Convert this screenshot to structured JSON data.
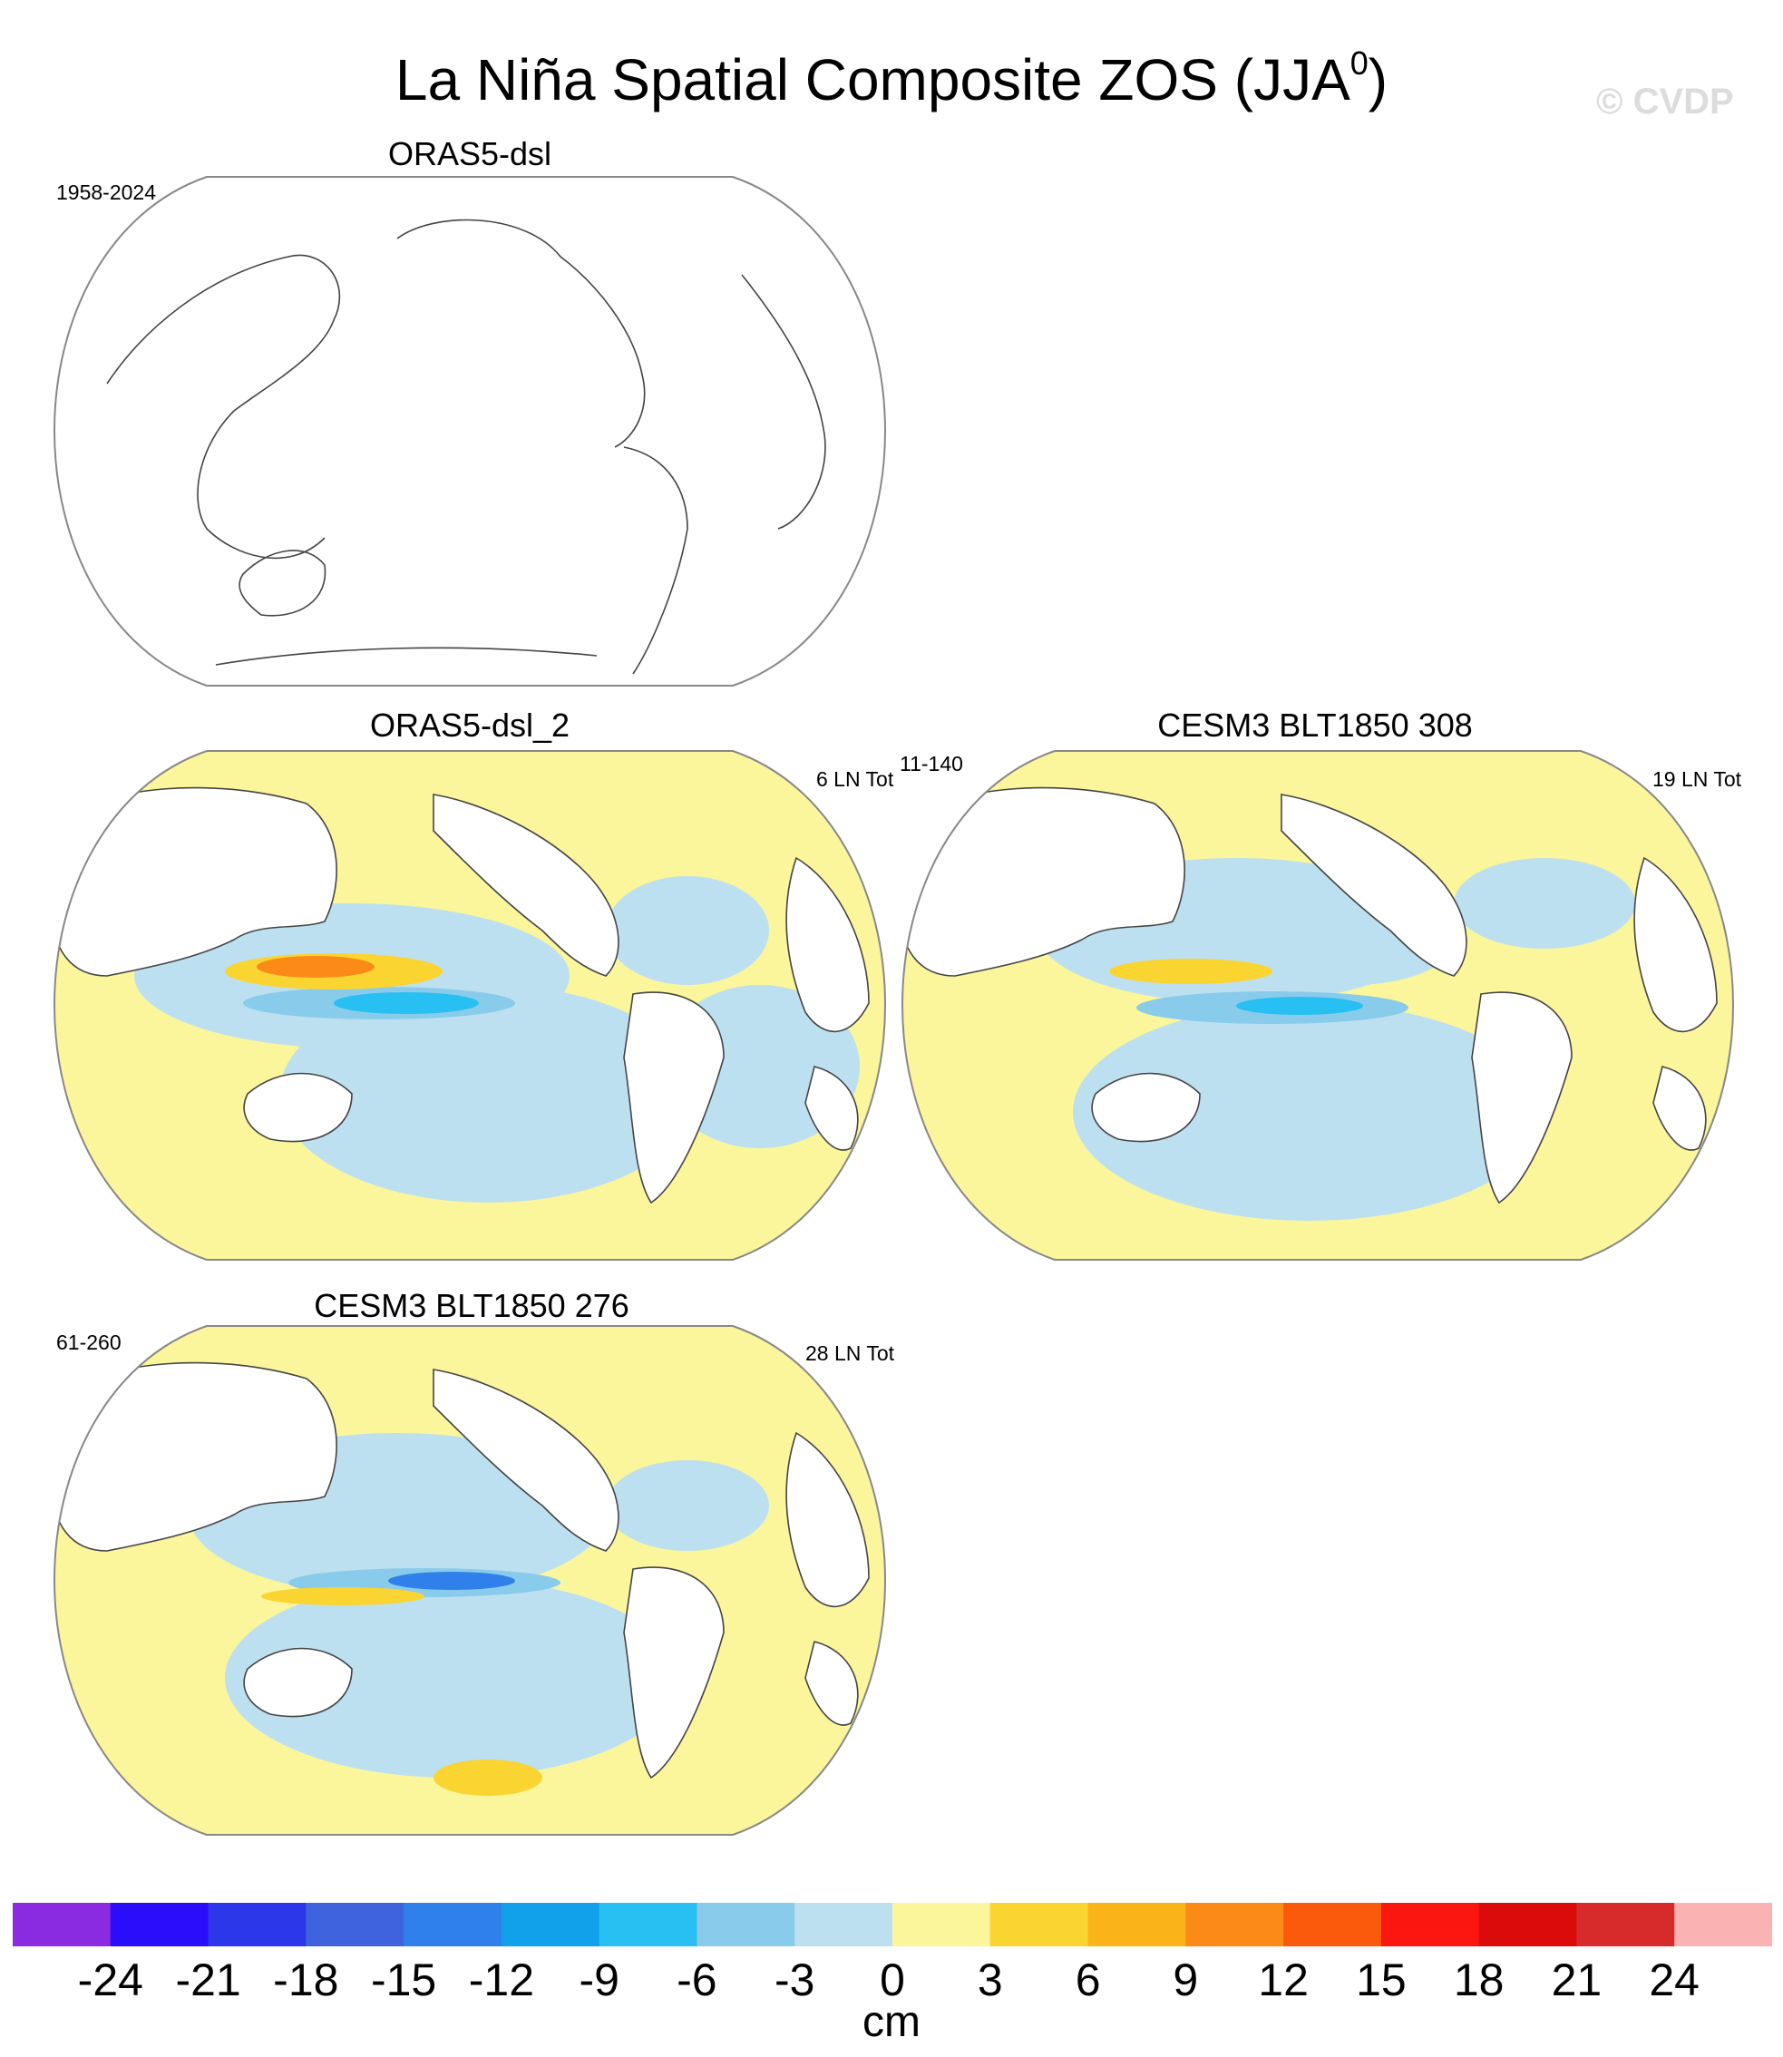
{
  "title_main": "La Niña Spatial Composite ZOS (JJA",
  "title_sup": "0",
  "title_close": ")",
  "watermark": "© CVDP",
  "panels": {
    "p1": {
      "name": "ORAS5-dsl",
      "years": "1958-2024",
      "count": ""
    },
    "p2": {
      "name": "ORAS5-dsl_2",
      "years": "",
      "count": "6 LN Tot"
    },
    "p3": {
      "name": "CESM3 BLT1850 308",
      "years": "11-140",
      "count": "19 LN Tot"
    },
    "p4": {
      "name": "CESM3 BLT1850 276",
      "years": "61-260",
      "count": "28 LN Tot"
    }
  },
  "colorbar": {
    "unit": "cm",
    "labels": [
      "-24",
      "-21",
      "-18",
      "-15",
      "-12",
      "-9",
      "-6",
      "-3",
      "0",
      "3",
      "6",
      "9",
      "12",
      "15",
      "18",
      "21",
      "24"
    ],
    "colors": [
      "#8a2be2",
      "#2a0dfa",
      "#2b37e8",
      "#3f63dc",
      "#2f80ea",
      "#11a0ea",
      "#28bff2",
      "#89cbea",
      "#bde0f0",
      "#fbf69c",
      "#fad431",
      "#fbb31a",
      "#fb8a17",
      "#fb5a0c",
      "#fb1710",
      "#dc0b0b",
      "#d72b2b",
      "#fbb2b2"
    ]
  }
}
